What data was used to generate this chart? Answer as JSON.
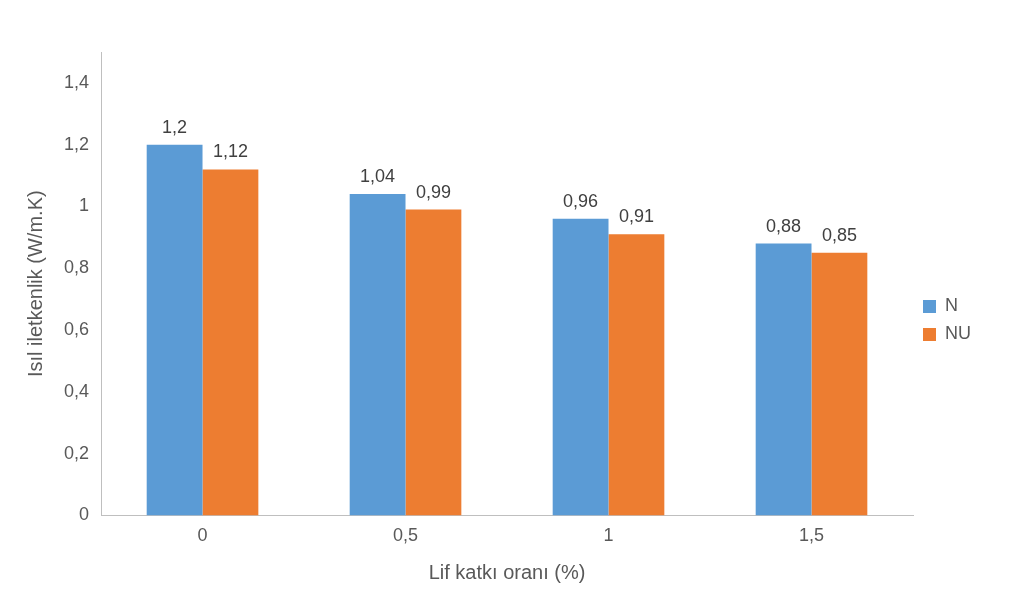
{
  "chart_data": {
    "type": "bar",
    "xlabel": "Lif katkı oranı (%)",
    "ylabel": "Isıl iletkenlik (W/m.K)",
    "categories": [
      "0",
      "0,5",
      "1",
      "1,5"
    ],
    "series": [
      {
        "name": "N",
        "color": "#5b9bd5",
        "values": [
          1.2,
          1.04,
          0.96,
          0.88
        ],
        "value_labels": [
          "1,2",
          "1,04",
          "0,96",
          "0,88"
        ]
      },
      {
        "name": "NU",
        "color": "#ed7d31",
        "values": [
          1.12,
          0.99,
          0.91,
          0.85
        ],
        "value_labels": [
          "1,12",
          "0,99",
          "0,91",
          "0,85"
        ]
      }
    ],
    "ylim": [
      0,
      1.5
    ],
    "yticks": [
      {
        "value": 0,
        "label": "0"
      },
      {
        "value": 0.2,
        "label": "0,2"
      },
      {
        "value": 0.4,
        "label": "0,4"
      },
      {
        "value": 0.6,
        "label": "0,6"
      },
      {
        "value": 0.8,
        "label": "0,8"
      },
      {
        "value": 1,
        "label": "1"
      },
      {
        "value": 1.2,
        "label": "1,2"
      },
      {
        "value": 1.4,
        "label": "1,4"
      }
    ],
    "grid": false,
    "legend": "right"
  }
}
